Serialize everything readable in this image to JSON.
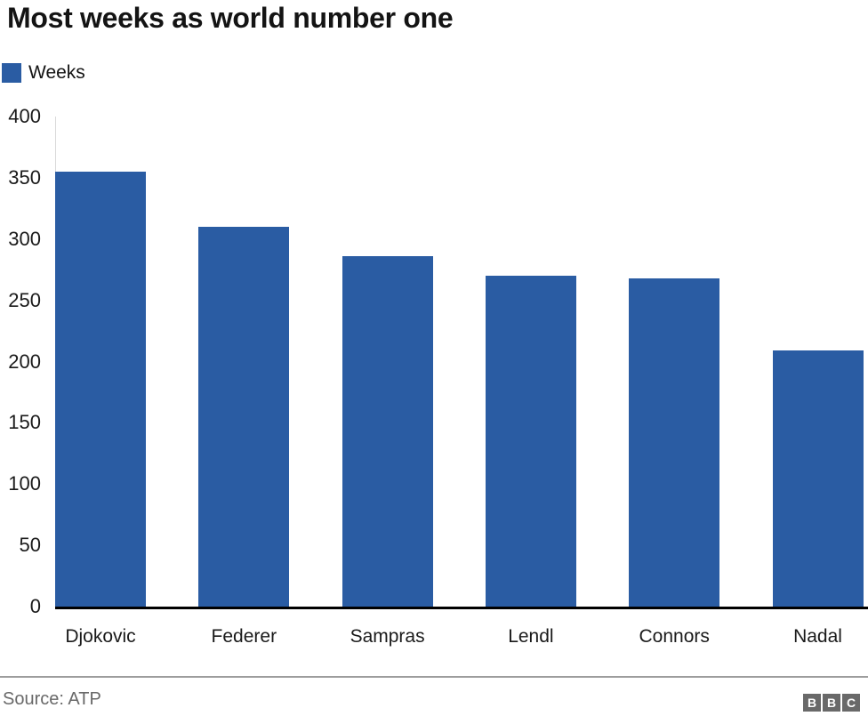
{
  "header": {
    "title": "Most weeks as world number one"
  },
  "legend": {
    "label": "Weeks"
  },
  "chart_data": {
    "type": "bar",
    "title": "Most weeks as world number one",
    "series_name": "Weeks",
    "categories": [
      "Djokovic",
      "Federer",
      "Sampras",
      "Lendl",
      "Connors",
      "Nadal"
    ],
    "values": [
      355,
      310,
      286,
      270,
      268,
      209
    ],
    "xlabel": "",
    "ylabel": "",
    "ylim": [
      0,
      400
    ],
    "yticks": [
      0,
      50,
      100,
      150,
      200,
      250,
      300,
      350,
      400
    ],
    "grid": false,
    "legend_position": "top-left",
    "bar_color": "#2a5ca3",
    "axis_line_color": "#000000",
    "tick_label_color": "#1a1a1a"
  },
  "footer": {
    "source": "Source: ATP",
    "logo_letters": [
      "B",
      "B",
      "C"
    ]
  }
}
